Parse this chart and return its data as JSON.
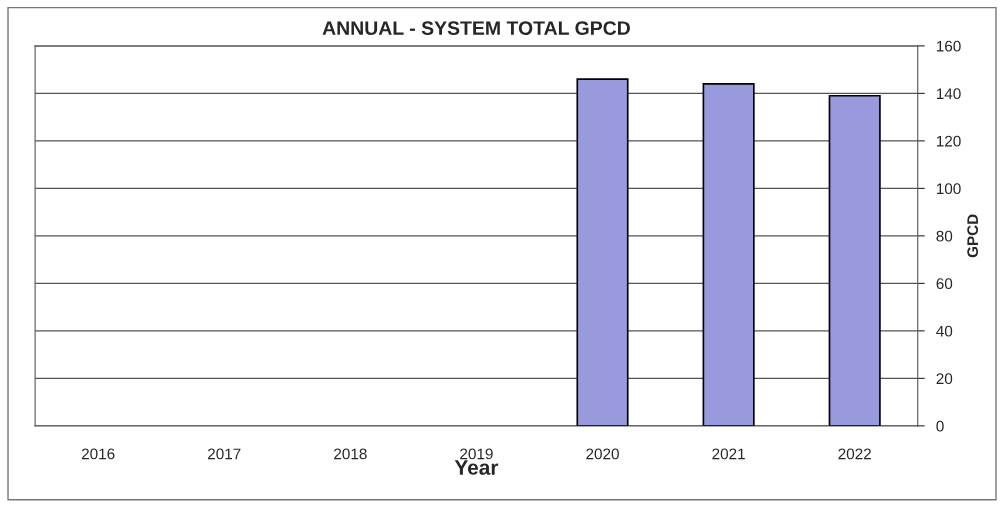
{
  "chart_data": {
    "type": "bar",
    "title": "ANNUAL - SYSTEM TOTAL GPCD",
    "xlabel": "Year",
    "ylabel": "GPCD",
    "categories": [
      "2016",
      "2017",
      "2018",
      "2019",
      "2020",
      "2021",
      "2022"
    ],
    "values": [
      null,
      null,
      null,
      null,
      146,
      144,
      139
    ],
    "color": "#9999dd",
    "ylim": [
      0,
      160
    ],
    "yticks": [
      0,
      20,
      40,
      60,
      80,
      100,
      120,
      140,
      160
    ],
    "grid": "y",
    "legend": false
  }
}
